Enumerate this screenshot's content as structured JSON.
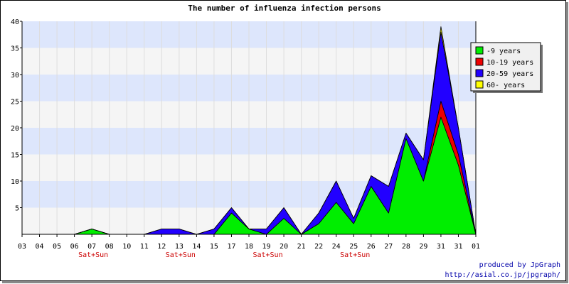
{
  "chart_data": {
    "type": "area",
    "stacked": true,
    "title": "The number of influenza infection persons",
    "xlabel": "",
    "ylabel": "",
    "categories": [
      "03",
      "04",
      "05",
      "06",
      "07",
      "08",
      "10",
      "11",
      "12",
      "13",
      "14",
      "15",
      "17",
      "18",
      "19",
      "20",
      "21",
      "22",
      "24",
      "25",
      "26",
      "27",
      "28",
      "29",
      "31",
      "31",
      "01"
    ],
    "weekend_labels": [
      {
        "category_index": 4,
        "text": "Sat+Sun"
      },
      {
        "category_index": 9,
        "text": "Sat+Sun"
      },
      {
        "category_index": 14,
        "text": "Sat+Sun"
      },
      {
        "category_index": 19,
        "text": "Sat+Sun"
      }
    ],
    "series": [
      {
        "name": "-9 years",
        "color": "#00ee00",
        "values": [
          0,
          0,
          0,
          0,
          1,
          0,
          0,
          0,
          0,
          0,
          0,
          0,
          4,
          1,
          0,
          3,
          0,
          2,
          6,
          2,
          9,
          4,
          18,
          10,
          22,
          13,
          0
        ]
      },
      {
        "name": "10-19 years",
        "color": "#ee0000",
        "values": [
          0,
          0,
          0,
          0,
          0,
          0,
          0,
          0,
          0,
          0,
          0,
          0,
          0,
          0,
          0,
          0,
          0,
          0,
          0,
          0,
          0,
          0,
          0,
          0,
          3,
          2,
          0
        ]
      },
      {
        "name": "20-59 years",
        "color": "#2200ff",
        "values": [
          0,
          0,
          0,
          0,
          0,
          0,
          0,
          0,
          1,
          1,
          0,
          1,
          1,
          0,
          1,
          2,
          0,
          2,
          4,
          1,
          2,
          5,
          1,
          4,
          13,
          5,
          0
        ]
      },
      {
        "name": "60- years",
        "color": "#ffff00",
        "values": [
          0,
          0,
          0,
          0,
          0,
          0,
          0,
          0,
          0,
          0,
          0,
          0,
          0,
          0,
          0,
          0,
          0,
          0,
          0,
          0,
          0,
          0,
          0,
          0,
          1,
          0,
          0
        ]
      }
    ],
    "ylim": [
      0,
      40
    ],
    "yticks": [
      5,
      10,
      15,
      20,
      25,
      30,
      35,
      40
    ],
    "grid": true,
    "band_colors": [
      "#f5f5f5",
      "#dde6fc"
    ],
    "legend_position": "top-right",
    "credit": [
      "produced by JpGraph",
      "http://asial.co.jp/jpgraph/"
    ]
  }
}
